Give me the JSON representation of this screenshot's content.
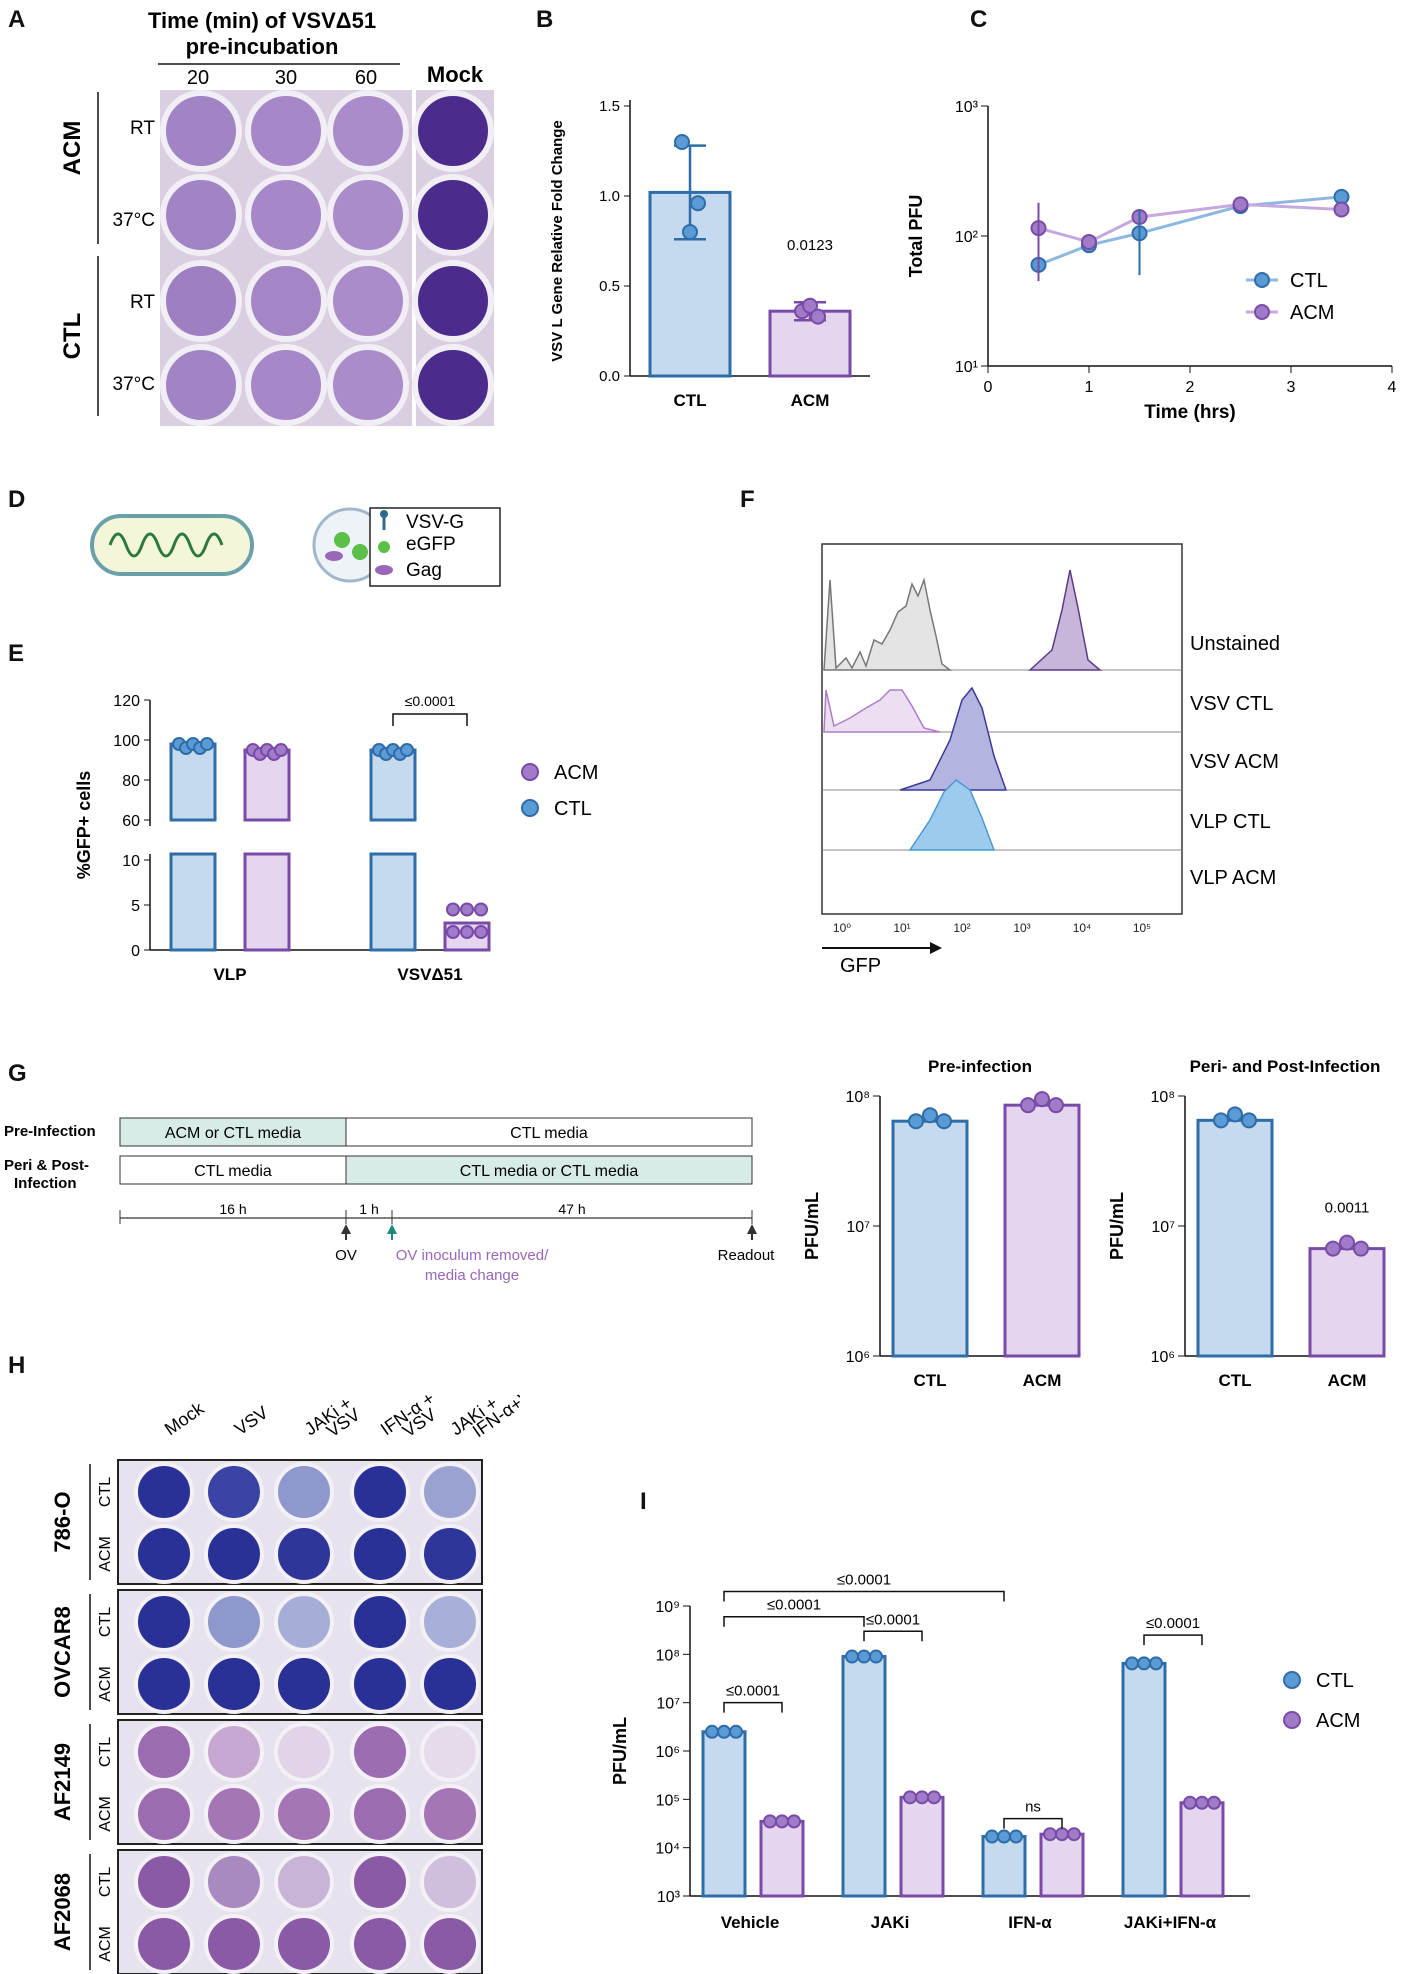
{
  "figure": {
    "panel_labels": [
      "A",
      "B",
      "C",
      "D",
      "E",
      "F",
      "G",
      "H",
      "I"
    ]
  },
  "colors": {
    "ctl_fill": "#c5d9ef",
    "ctl_stroke": "#2e6da8",
    "ctl_dot": "#5b9bd5",
    "acm_fill": "#e3d6ee",
    "acm_stroke": "#7a4aa8",
    "acm_dot": "#a07cc8",
    "plate_purple": "#8e62b6",
    "plate_dark": "#3a2a8c",
    "plate_blue": "#2f3a9e",
    "teal_box": "#d7ece8"
  },
  "panelA": {
    "title_line1": "Time (min) of VSVΔ51",
    "title_line2": "pre-incubation",
    "columns": [
      "20",
      "30",
      "60"
    ],
    "mock_label": "Mock",
    "groups": [
      {
        "name": "ACM",
        "rows": [
          "RT",
          "37°C"
        ]
      },
      {
        "name": "CTL",
        "rows": [
          "RT",
          "37°C"
        ]
      }
    ]
  },
  "panelD": {
    "legend": [
      "VSV-G",
      "eGFP",
      "Gag"
    ]
  },
  "panelF": {
    "rows": [
      "Unstained",
      "VSV CTL",
      "VSV ACM",
      "VLP CTL",
      "VLP ACM"
    ],
    "xlabel": "GFP",
    "ticks": [
      "10⁰",
      "10¹",
      "10²",
      "10³",
      "10⁴",
      "10⁵"
    ]
  },
  "panelG": {
    "rows": [
      {
        "label": "Pre-Infection",
        "boxes": [
          "ACM or CTL media",
          "CTL media"
        ]
      },
      {
        "label": "Peri & Post-\nInfection",
        "label_line1": "Peri & Post-",
        "label_line2": "Infection",
        "boxes": [
          "CTL media",
          "CTL media or CTL media"
        ]
      }
    ],
    "durations": [
      "16 h",
      "1 h",
      "47 h"
    ],
    "markers": [
      "OV",
      "OV inoculum removed/",
      "media change",
      "Readout"
    ]
  },
  "panelH": {
    "columns": [
      "Mock",
      "VSV",
      "JAKi +",
      "VSV",
      "IFN-α +",
      "VSV",
      "JAKi +",
      "IFN-α+VSV"
    ],
    "col_labels": [
      "Mock",
      "VSV",
      "JAKi +\nVSV",
      "IFN-α +\nVSV",
      "JAKi +\nIFN-α+VSV"
    ],
    "cell_lines": [
      "786-O",
      "OVCAR8",
      "AF2149",
      "AF2068"
    ],
    "rows": [
      "CTL",
      "ACM"
    ]
  },
  "chart_data": [
    {
      "id": "B",
      "type": "bar",
      "categories": [
        "CTL",
        "ACM"
      ],
      "values": [
        1.02,
        0.36
      ],
      "error": [
        0.26,
        0.05
      ],
      "points": [
        [
          1.3,
          0.8,
          0.96
        ],
        [
          0.36,
          0.39,
          0.33
        ]
      ],
      "ylabel": "VSV L Gene Relative Fold Change",
      "ylim": [
        0,
        1.5
      ],
      "yticks": [
        "0.0",
        "0.5",
        "1.0",
        "1.5"
      ],
      "annotation": "0.0123"
    },
    {
      "id": "C",
      "type": "line",
      "xlabel": "Time (hrs)",
      "ylabel": "Total PFU",
      "xlim": [
        0,
        4
      ],
      "xticks": [
        "0",
        "1",
        "2",
        "3",
        "4"
      ],
      "yscale": "log",
      "ylim": [
        10,
        1000
      ],
      "yticks": [
        "10¹",
        "10²",
        "10³"
      ],
      "series": [
        {
          "name": "CTL",
          "x": [
            0.5,
            1,
            1.5,
            2.5,
            3.5
          ],
          "y": [
            60,
            85,
            105,
            170,
            200
          ]
        },
        {
          "name": "ACM",
          "x": [
            0.5,
            1,
            1.5,
            2.5,
            3.5
          ],
          "y": [
            115,
            90,
            140,
            175,
            160
          ]
        }
      ]
    },
    {
      "id": "E",
      "type": "bar",
      "categories": [
        "VLP",
        "VSVΔ51"
      ],
      "ylabel": "%GFP+ cells",
      "upper_ticks": [
        "60",
        "80",
        "100",
        "120"
      ],
      "lower_ticks": [
        "0",
        "5",
        "10"
      ],
      "series": [
        {
          "name": "CTL",
          "values": [
            98,
            95
          ]
        },
        {
          "name": "ACM",
          "values": [
            95,
            3
          ]
        }
      ],
      "annotation": "≤0.0001",
      "legend": [
        "ACM",
        "CTL"
      ]
    },
    {
      "id": "G1",
      "type": "bar",
      "title": "Pre-infection",
      "categories": [
        "CTL",
        "ACM"
      ],
      "values": [
        64000000,
        85000000
      ],
      "ylabel": "PFU/mL",
      "yscale": "log",
      "ylim": [
        1000000,
        100000000
      ],
      "yticks": [
        "10⁶",
        "10⁷",
        "10⁸"
      ]
    },
    {
      "id": "G2",
      "type": "bar",
      "title": "Peri- and Post-Infection",
      "categories": [
        "CTL",
        "ACM"
      ],
      "values": [
        65000000,
        6700000
      ],
      "ylabel": "PFU/mL",
      "yscale": "log",
      "ylim": [
        1000000,
        100000000
      ],
      "yticks": [
        "10⁶",
        "10⁷",
        "10⁸"
      ],
      "annotation": "0.0011"
    },
    {
      "id": "I",
      "type": "bar",
      "categories": [
        "Vehicle",
        "JAKi",
        "IFN-α",
        "JAKi+IFN-α"
      ],
      "ylabel": "PFU/mL",
      "yscale": "log",
      "ylim": [
        1000,
        1000000000
      ],
      "yticks": [
        "10³",
        "10⁴",
        "10⁵",
        "10⁶",
        "10⁷",
        "10⁸",
        "10⁹"
      ],
      "series": [
        {
          "name": "CTL",
          "values": [
            2500000,
            90000000,
            17000,
            65000000
          ]
        },
        {
          "name": "ACM",
          "values": [
            35000,
            110000,
            19000,
            85000
          ]
        }
      ],
      "annotations": [
        "≤0.0001",
        "≤0.0001",
        "ns",
        "≤0.0001",
        "≤0.0001",
        "≤0.0001"
      ],
      "legend": [
        "CTL",
        "ACM"
      ]
    }
  ]
}
